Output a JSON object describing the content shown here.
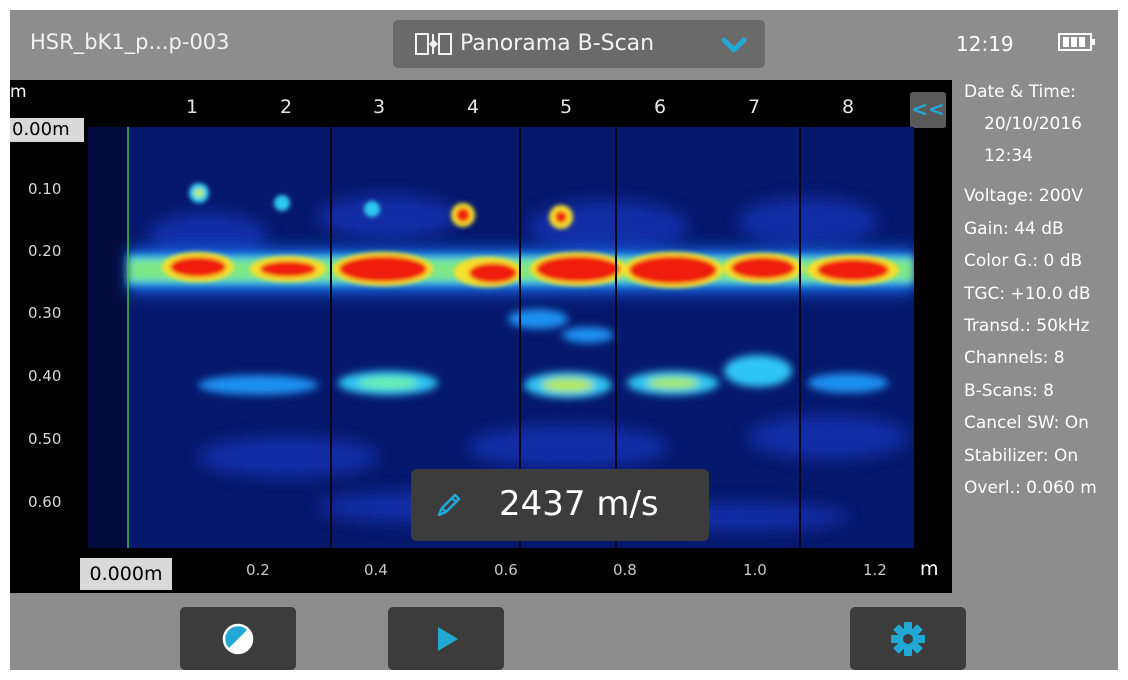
{
  "header": {
    "file_name": "HSR_bK1_p...p-003",
    "mode_label": "Panorama B-Scan",
    "clock": "12:19",
    "icons": {
      "mode": "panorama-icon",
      "dropdown": "chevron-down-icon",
      "battery": "battery-icon"
    }
  },
  "plot": {
    "depth_unit": "m",
    "depth_origin": "0.00m",
    "depth_ticks": [
      "0.10",
      "0.20",
      "0.30",
      "0.40",
      "0.50",
      "0.60"
    ],
    "channel_numbers": [
      "1",
      "2",
      "3",
      "4",
      "5",
      "6",
      "7",
      "8"
    ],
    "collapse_label": "<<",
    "x_origin": "0.000m",
    "x_ticks": [
      "0.2",
      "0.4",
      "0.6",
      "0.8",
      "1.0",
      "1.2"
    ],
    "x_unit": "m",
    "velocity": "2437 m/s",
    "accent_color": "#22a8d4"
  },
  "info": {
    "lines": [
      "Date & Time:",
      "20/10/2016",
      "12:34",
      "Voltage: 200V",
      "Gain: 44 dB",
      "Color G.: 0 dB",
      "TGC: +10.0 dB",
      "Transd.: 50kHz",
      "Channels: 8",
      "B-Scans: 8",
      "Cancel SW: On",
      "Stabilizer: On",
      "Overl.: 0.060 m"
    ]
  },
  "toolbar": {
    "buttons": [
      {
        "icon": "contrast-icon"
      },
      {
        "icon": "play-icon"
      },
      {
        "icon": "gear-icon"
      }
    ]
  }
}
